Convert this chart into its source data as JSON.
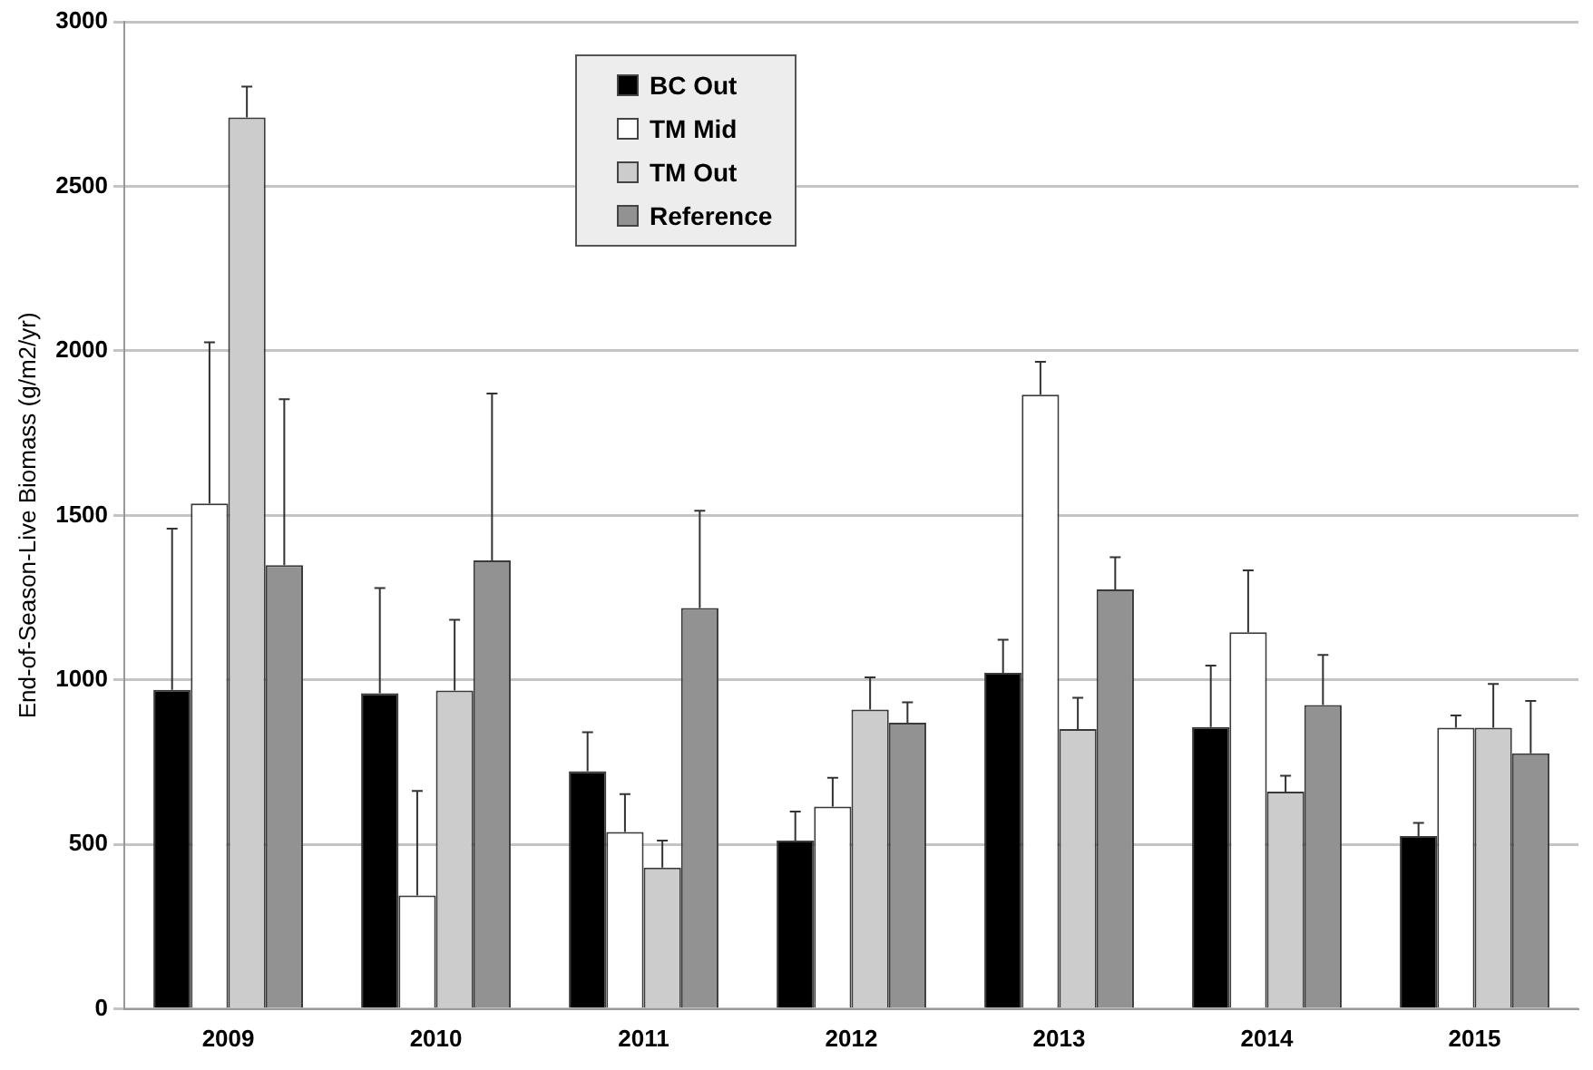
{
  "chart_data": {
    "type": "bar",
    "ylabel": "End-of-Season-Live Biomass (g/m2/yr)",
    "categories": [
      "2009",
      "2010",
      "2011",
      "2012",
      "2013",
      "2014",
      "2015"
    ],
    "ylim": [
      0,
      3000
    ],
    "yticks": [
      0,
      500,
      1000,
      1500,
      2000,
      2500,
      3000
    ],
    "grid": "y",
    "legend": "top",
    "series": [
      {
        "name": "BC Out",
        "color": "#000000",
        "values": [
          970,
          960,
          723,
          512,
          1022,
          857,
          526
        ],
        "errors": [
          [
            970,
            1460
          ],
          [
            960,
            1279
          ],
          [
            723,
            841
          ],
          [
            512,
            600
          ],
          [
            1022,
            1122
          ],
          [
            857,
            1044
          ],
          [
            526,
            566
          ]
        ]
      },
      {
        "name": "TM Mid",
        "color": "#ffffff",
        "values": [
          1536,
          345,
          538,
          615,
          1867,
          1145,
          855
        ],
        "errors": [
          [
            1536,
            2026
          ],
          [
            345,
            663
          ],
          [
            538,
            653
          ],
          [
            615,
            703
          ],
          [
            1867,
            1967
          ],
          [
            1145,
            1333
          ],
          [
            855,
            892
          ]
        ]
      },
      {
        "name": "TM Out",
        "color": "#cccccc",
        "values": [
          2709,
          968,
          430,
          910,
          851,
          661,
          855
        ],
        "errors": [
          [
            2709,
            2803
          ],
          [
            968,
            1183
          ],
          [
            430,
            512
          ],
          [
            910,
            1008
          ],
          [
            851,
            946
          ],
          [
            661,
            709
          ],
          [
            855,
            988
          ]
        ]
      },
      {
        "name": "Reference",
        "color": "#929292",
        "values": [
          1349,
          1363,
          1219,
          870,
          1275,
          924,
          777
        ],
        "errors": [
          [
            1349,
            1853
          ],
          [
            1363,
            1870
          ],
          [
            1219,
            1514
          ],
          [
            870,
            932
          ],
          [
            1275,
            1373
          ],
          [
            924,
            1076
          ],
          [
            777,
            936
          ]
        ]
      }
    ]
  }
}
